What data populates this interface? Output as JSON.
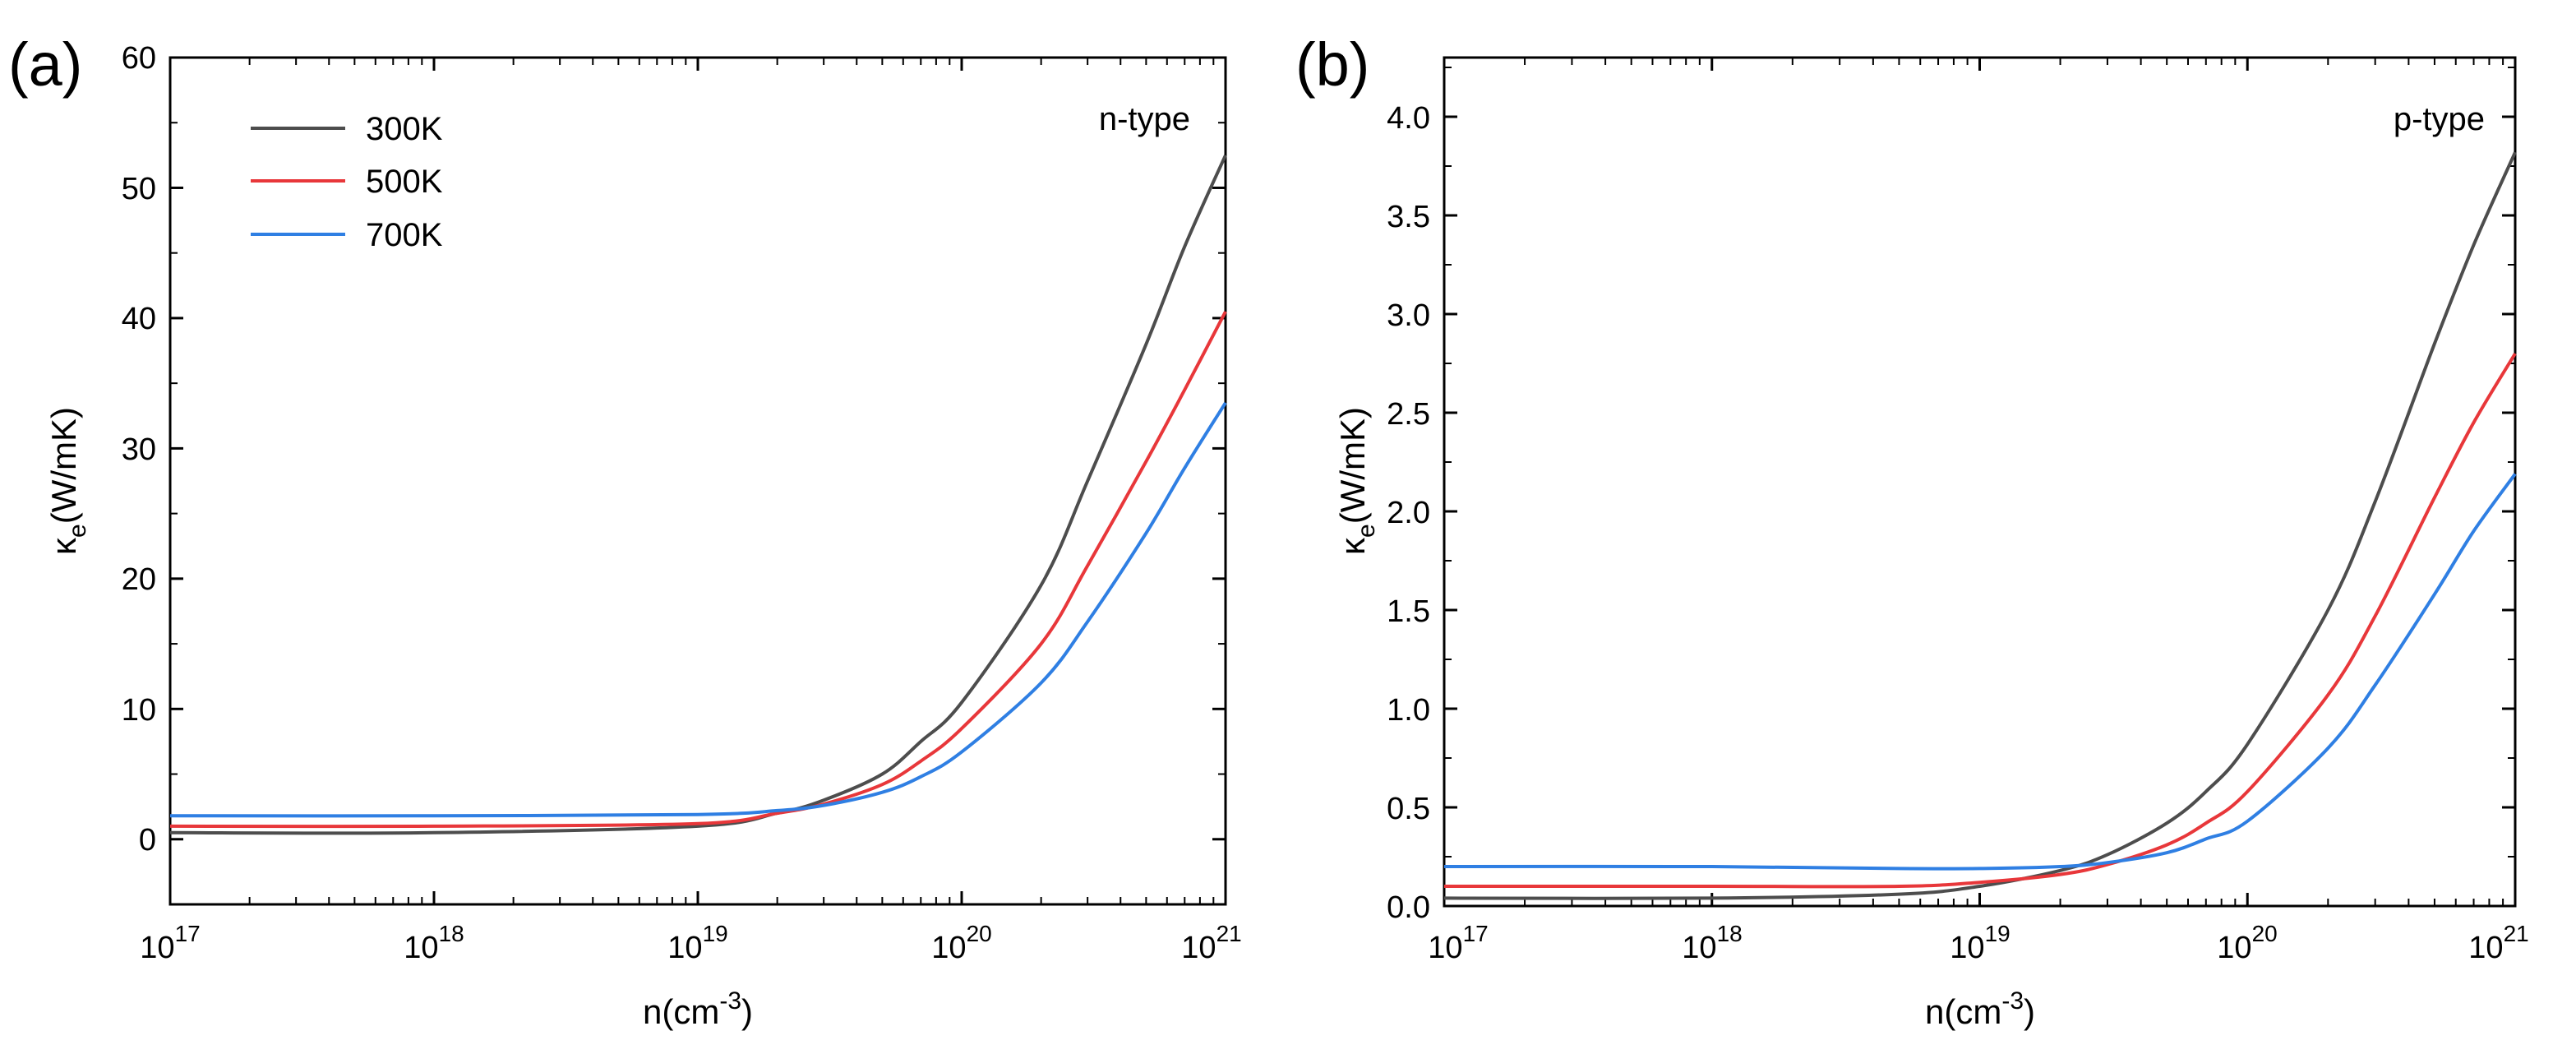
{
  "figure": {
    "panels": [
      {
        "label": "(a)",
        "type_label": "n-type",
        "xlabel": "n(cm",
        "xlabel_sup": "-3",
        "xlabel_end": ")",
        "ylabel_main": "κ",
        "ylabel_sub": "e",
        "ylabel_unit": "(W/mK)",
        "x_ticks": [
          {
            "base": "10",
            "exp": "17"
          },
          {
            "base": "10",
            "exp": "18"
          },
          {
            "base": "10",
            "exp": "19"
          },
          {
            "base": "10",
            "exp": "20"
          },
          {
            "base": "10",
            "exp": "21"
          }
        ],
        "y_ticks": [
          "0",
          "10",
          "20",
          "30",
          "40",
          "50",
          "60"
        ]
      },
      {
        "label": "(b)",
        "type_label": "p-type",
        "xlabel": "n(cm",
        "xlabel_sup": "-3",
        "xlabel_end": ")",
        "ylabel_main": "κ",
        "ylabel_sub": "e",
        "ylabel_unit": "(W/mK)",
        "x_ticks": [
          {
            "base": "10",
            "exp": "17"
          },
          {
            "base": "10",
            "exp": "18"
          },
          {
            "base": "10",
            "exp": "19"
          },
          {
            "base": "10",
            "exp": "20"
          },
          {
            "base": "10",
            "exp": "21"
          }
        ],
        "y_ticks": [
          "0.0",
          "0.5",
          "1.0",
          "1.5",
          "2.0",
          "2.5",
          "3.0",
          "3.5",
          "4.0"
        ]
      }
    ]
  },
  "chart_data": [
    {
      "type": "line",
      "title": "n-type",
      "xlabel": "n(cm-3)",
      "ylabel": "κe(W/mK)",
      "xscale": "log",
      "xlim": [
        1e+17,
        1e+21
      ],
      "ylim": [
        -5,
        60
      ],
      "legend_position": "top-left",
      "x": [
        1e+17,
        1e+18,
        1e+19,
        2e+19,
        3e+19,
        5e+19,
        7e+19,
        1e+20,
        2e+20,
        3e+20,
        5e+20,
        7e+20,
        1e+21
      ],
      "series": [
        {
          "name": "300K",
          "color": "#4d4d4d",
          "values": [
            0.5,
            0.5,
            1.0,
            2.0,
            3.0,
            5.0,
            7.5,
            10.5,
            19.5,
            27.5,
            38.0,
            45.5,
            52.5
          ]
        },
        {
          "name": "500K",
          "color": "#e8373a",
          "values": [
            1.0,
            1.0,
            1.2,
            2.0,
            2.7,
            4.2,
            6.0,
            8.5,
            15.0,
            21.0,
            29.0,
            34.5,
            40.5
          ]
        },
        {
          "name": "700K",
          "color": "#2f7fe3",
          "values": [
            1.8,
            1.8,
            1.9,
            2.2,
            2.6,
            3.6,
            4.8,
            6.7,
            12.0,
            16.7,
            23.5,
            28.5,
            33.5
          ]
        }
      ]
    },
    {
      "type": "line",
      "title": "p-type",
      "xlabel": "n(cm-3)",
      "ylabel": "κe(W/mK)",
      "xscale": "log",
      "xlim": [
        1e+17,
        1e+21
      ],
      "ylim": [
        0,
        4.3
      ],
      "x": [
        1e+17,
        1e+18,
        5e+18,
        1e+19,
        2e+19,
        3e+19,
        5e+19,
        7e+19,
        1e+20,
        2e+20,
        3e+20,
        5e+20,
        7e+20,
        1e+21
      ],
      "series": [
        {
          "name": "300K",
          "color": "#4d4d4d",
          "values": [
            0.04,
            0.04,
            0.06,
            0.1,
            0.18,
            0.26,
            0.42,
            0.58,
            0.82,
            1.5,
            2.05,
            2.85,
            3.35,
            3.82
          ]
        },
        {
          "name": "500K",
          "color": "#e8373a",
          "values": [
            0.1,
            0.1,
            0.1,
            0.12,
            0.16,
            0.21,
            0.31,
            0.42,
            0.58,
            1.07,
            1.47,
            2.07,
            2.45,
            2.8
          ]
        },
        {
          "name": "700K",
          "color": "#2f7fe3",
          "values": [
            0.2,
            0.2,
            0.19,
            0.19,
            0.2,
            0.22,
            0.27,
            0.34,
            0.43,
            0.8,
            1.12,
            1.58,
            1.9,
            2.19
          ]
        }
      ]
    }
  ]
}
